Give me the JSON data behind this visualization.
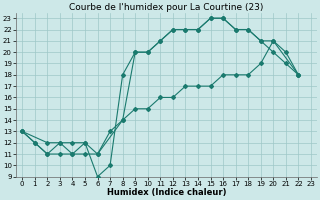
{
  "line1_x": [
    0,
    1,
    2,
    3,
    4,
    5,
    6,
    7,
    8,
    9,
    10,
    11,
    12,
    13,
    14,
    15,
    16,
    17,
    18,
    19,
    20,
    21,
    22
  ],
  "line1_y": [
    13,
    12,
    11,
    12,
    11,
    12,
    9,
    10,
    18,
    20,
    20,
    21,
    22,
    22,
    22,
    23,
    23,
    22,
    22,
    21,
    20,
    19,
    18
  ],
  "line2_x": [
    0,
    1,
    2,
    3,
    4,
    5,
    6,
    7,
    8,
    9,
    10,
    11,
    12,
    13,
    14,
    15,
    16,
    17,
    18,
    19,
    20,
    21,
    22
  ],
  "line2_y": [
    13,
    12,
    11,
    11,
    11,
    11,
    11,
    13,
    14,
    15,
    15,
    16,
    16,
    17,
    17,
    17,
    18,
    18,
    18,
    19,
    21,
    20,
    18
  ],
  "line3_x": [
    0,
    2,
    3,
    4,
    5,
    6,
    8,
    9,
    10,
    11,
    12,
    13,
    14,
    15,
    16,
    17,
    18,
    19,
    20,
    22
  ],
  "line3_y": [
    13,
    12,
    12,
    12,
    12,
    11,
    14,
    20,
    20,
    21,
    22,
    22,
    22,
    23,
    23,
    22,
    22,
    21,
    21,
    18
  ],
  "line_color": "#1a7a6e",
  "bg_color": "#cde8e8",
  "grid_color": "#9fc8c8",
  "title": "Courbe de l'humidex pour La Courtine (23)",
  "xlabel": "Humidex (Indice chaleur)",
  "xlim": [
    -0.5,
    23.5
  ],
  "ylim": [
    9,
    23.5
  ],
  "xticks": [
    0,
    1,
    2,
    3,
    4,
    5,
    6,
    7,
    8,
    9,
    10,
    11,
    12,
    13,
    14,
    15,
    16,
    17,
    18,
    19,
    20,
    21,
    22,
    23
  ],
  "yticks": [
    9,
    10,
    11,
    12,
    13,
    14,
    15,
    16,
    17,
    18,
    19,
    20,
    21,
    22,
    23
  ],
  "title_fontsize": 6.5,
  "label_fontsize": 6,
  "tick_fontsize": 5
}
